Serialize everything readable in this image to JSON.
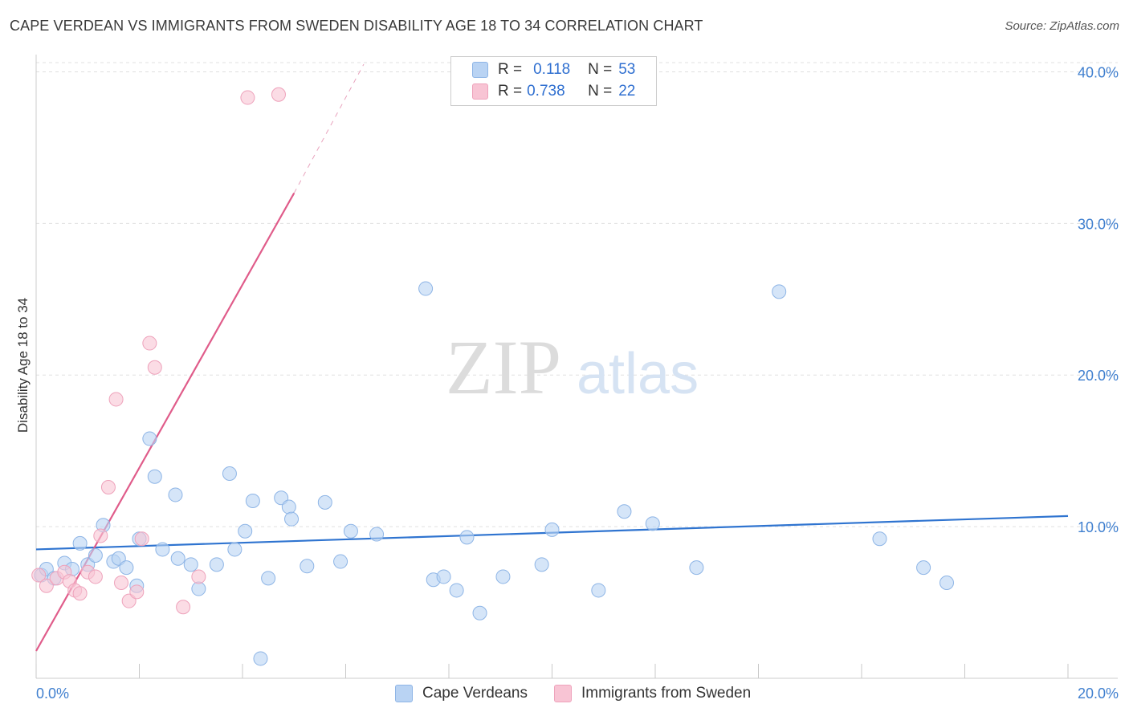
{
  "title": "CAPE VERDEAN VS IMMIGRANTS FROM SWEDEN DISABILITY AGE 18 TO 34 CORRELATION CHART",
  "source": "Source: ZipAtlas.com",
  "watermark": {
    "zip": "ZIP",
    "atlas": "atlas"
  },
  "legend": {
    "series1": {
      "r_label": "R =",
      "r_value": "0.118",
      "n_label": "N =",
      "n_value": "53"
    },
    "series2": {
      "r_label": "R =",
      "r_value": "0.738",
      "n_label": "N =",
      "n_value": "22"
    }
  },
  "bottom_legend": {
    "series1": "Cape Verdeans",
    "series2": "Immigrants from Sweden"
  },
  "colors": {
    "blue_fill": "#b9d3f3",
    "blue_stroke": "#8eb5e6",
    "blue_line": "#2f74d0",
    "pink_fill": "#f8c4d4",
    "pink_stroke": "#eea2bb",
    "pink_line": "#e05c8a",
    "grid": "#e0e0e0",
    "tick_text": "#3f7fcf"
  },
  "chart_data": {
    "type": "scatter",
    "title": "CAPE VERDEAN VS IMMIGRANTS FROM SWEDEN DISABILITY AGE 18 TO 34 CORRELATION CHART",
    "xlabel": "",
    "ylabel": "Disability Age 18 to 34",
    "xlim": [
      0,
      20
    ],
    "ylim": [
      0,
      40.5
    ],
    "x_tick_labels": [
      {
        "value": 0,
        "label": "0.0%"
      },
      {
        "value": 20,
        "label": "20.0%"
      }
    ],
    "y_tick_labels": [
      {
        "value": 10,
        "label": "10.0%"
      },
      {
        "value": 20,
        "label": "20.0%"
      },
      {
        "value": 30,
        "label": "30.0%"
      },
      {
        "value": 40,
        "label": "40.0%"
      }
    ],
    "series": [
      {
        "name": "Cape Verdeans",
        "color": "blue",
        "points": [
          [
            0.1,
            6.8
          ],
          [
            0.2,
            7.2
          ],
          [
            0.35,
            6.6
          ],
          [
            0.55,
            7.6
          ],
          [
            0.7,
            7.2
          ],
          [
            0.85,
            8.9
          ],
          [
            1.0,
            7.5
          ],
          [
            1.15,
            8.1
          ],
          [
            1.3,
            10.1
          ],
          [
            1.5,
            7.7
          ],
          [
            1.6,
            7.9
          ],
          [
            1.75,
            7.3
          ],
          [
            1.95,
            6.1
          ],
          [
            2.0,
            9.2
          ],
          [
            2.2,
            15.8
          ],
          [
            2.3,
            13.3
          ],
          [
            2.45,
            8.5
          ],
          [
            2.7,
            12.1
          ],
          [
            2.75,
            7.9
          ],
          [
            3.0,
            7.5
          ],
          [
            3.15,
            5.9
          ],
          [
            3.5,
            7.5
          ],
          [
            3.75,
            13.5
          ],
          [
            3.85,
            8.5
          ],
          [
            4.05,
            9.7
          ],
          [
            4.2,
            11.7
          ],
          [
            4.35,
            1.3
          ],
          [
            4.5,
            6.6
          ],
          [
            4.75,
            11.9
          ],
          [
            4.9,
            11.3
          ],
          [
            4.95,
            10.5
          ],
          [
            5.25,
            7.4
          ],
          [
            5.6,
            11.6
          ],
          [
            5.9,
            7.7
          ],
          [
            6.1,
            9.7
          ],
          [
            6.6,
            9.5
          ],
          [
            7.55,
            25.7
          ],
          [
            7.7,
            6.5
          ],
          [
            7.9,
            6.7
          ],
          [
            8.15,
            5.8
          ],
          [
            8.35,
            9.3
          ],
          [
            8.6,
            4.3
          ],
          [
            9.05,
            6.7
          ],
          [
            9.8,
            7.5
          ],
          [
            10.0,
            9.8
          ],
          [
            10.9,
            5.8
          ],
          [
            11.4,
            11.0
          ],
          [
            11.95,
            10.2
          ],
          [
            12.8,
            7.3
          ],
          [
            14.4,
            25.5
          ],
          [
            16.35,
            9.2
          ],
          [
            17.2,
            7.3
          ],
          [
            17.65,
            6.3
          ]
        ]
      },
      {
        "name": "Immigrants from Sweden",
        "color": "pink",
        "points": [
          [
            0.05,
            6.8
          ],
          [
            0.2,
            6.1
          ],
          [
            0.4,
            6.6
          ],
          [
            0.55,
            7.0
          ],
          [
            0.65,
            6.4
          ],
          [
            0.75,
            5.8
          ],
          [
            0.85,
            5.6
          ],
          [
            1.0,
            7.0
          ],
          [
            1.15,
            6.7
          ],
          [
            1.25,
            9.4
          ],
          [
            1.4,
            12.6
          ],
          [
            1.55,
            18.4
          ],
          [
            1.65,
            6.3
          ],
          [
            1.8,
            5.1
          ],
          [
            1.95,
            5.7
          ],
          [
            2.05,
            9.2
          ],
          [
            2.2,
            22.1
          ],
          [
            2.3,
            20.5
          ],
          [
            2.85,
            4.7
          ],
          [
            3.15,
            6.7
          ],
          [
            4.1,
            38.3
          ],
          [
            4.7,
            38.5
          ]
        ]
      }
    ],
    "trendlines": [
      {
        "series": "Cape Verdeans",
        "from": [
          0,
          8.5
        ],
        "to": [
          20,
          10.7
        ]
      },
      {
        "series": "Immigrants from Sweden",
        "from": [
          0,
          1.8
        ],
        "to": [
          5.0,
          32.0
        ],
        "dashed_to": [
          6.35,
          40.5
        ]
      }
    ]
  }
}
